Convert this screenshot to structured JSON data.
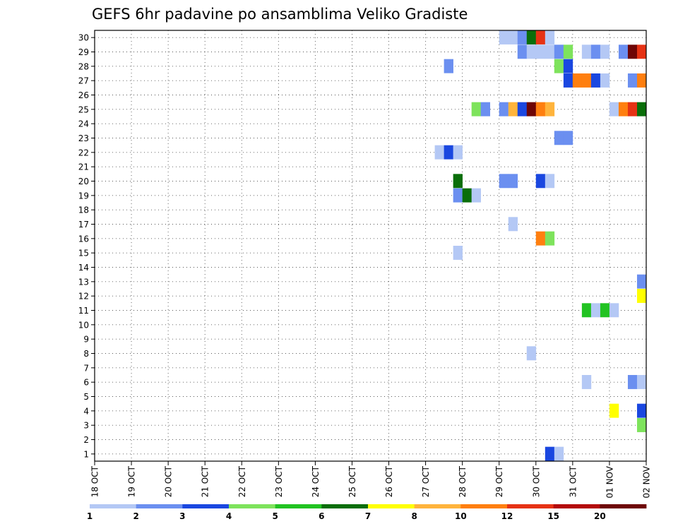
{
  "chart_data": {
    "type": "heatmap",
    "title": "GEFS 6hr padavine po ansamblima Veliko Gradiste",
    "xlabel": "",
    "ylabel": "",
    "x_tick_labels": [
      "18 OCT",
      "19 OCT",
      "20 OCT",
      "21 OCT",
      "22 OCT",
      "23 OCT",
      "24 OCT",
      "25 OCT",
      "26 OCT",
      "27 OCT",
      "28 OCT",
      "29 OCT",
      "30 OCT",
      "31 OCT",
      "01 NOV",
      "02 NOV"
    ],
    "xlim": [
      0,
      60
    ],
    "y_tick_labels": [
      "1",
      "2",
      "3",
      "4",
      "5",
      "6",
      "7",
      "8",
      "9",
      "10",
      "11",
      "12",
      "13",
      "14",
      "15",
      "16",
      "17",
      "18",
      "19",
      "20",
      "21",
      "22",
      "23",
      "24",
      "25",
      "26",
      "27",
      "28",
      "29",
      "30"
    ],
    "ylim": [
      0.5,
      30.5
    ],
    "grid": true,
    "colorbar": {
      "labels": [
        "1",
        "2",
        "3",
        "4",
        "5",
        "6",
        "7",
        "8",
        "10",
        "12",
        "15",
        "20"
      ],
      "colors": [
        "#b4c8f5",
        "#6b8ff0",
        "#1a47e0",
        "#7ee35c",
        "#22c322",
        "#0a6e0a",
        "#ffff00",
        "#ffb43c",
        "#ff7f0f",
        "#e63214",
        "#b40a0a",
        "#6e0505"
      ]
    },
    "cells": [
      {
        "member": 30,
        "step": 44,
        "value": 1
      },
      {
        "member": 30,
        "step": 45,
        "value": 1
      },
      {
        "member": 30,
        "step": 46,
        "value": 2
      },
      {
        "member": 30,
        "step": 47,
        "value": 6
      },
      {
        "member": 30,
        "step": 48,
        "value": 12
      },
      {
        "member": 30,
        "step": 49,
        "value": 1
      },
      {
        "member": 29,
        "step": 46,
        "value": 2
      },
      {
        "member": 29,
        "step": 47,
        "value": 1
      },
      {
        "member": 29,
        "step": 48,
        "value": 1
      },
      {
        "member": 29,
        "step": 49,
        "value": 1
      },
      {
        "member": 29,
        "step": 50,
        "value": 2
      },
      {
        "member": 29,
        "step": 51,
        "value": 4
      },
      {
        "member": 29,
        "step": 53,
        "value": 1
      },
      {
        "member": 29,
        "step": 54,
        "value": 2
      },
      {
        "member": 29,
        "step": 55,
        "value": 1
      },
      {
        "member": 29,
        "step": 57,
        "value": 2
      },
      {
        "member": 29,
        "step": 58,
        "value": 20
      },
      {
        "member": 29,
        "step": 59,
        "value": 12
      },
      {
        "member": 28,
        "step": 38,
        "value": 2
      },
      {
        "member": 28,
        "step": 50,
        "value": 4
      },
      {
        "member": 28,
        "step": 51,
        "value": 3
      },
      {
        "member": 27,
        "step": 51,
        "value": 3
      },
      {
        "member": 27,
        "step": 52,
        "value": 10
      },
      {
        "member": 27,
        "step": 53,
        "value": 10
      },
      {
        "member": 27,
        "step": 54,
        "value": 3
      },
      {
        "member": 27,
        "step": 55,
        "value": 1
      },
      {
        "member": 27,
        "step": 58,
        "value": 2
      },
      {
        "member": 27,
        "step": 59,
        "value": 10
      },
      {
        "member": 25,
        "step": 41,
        "value": 4
      },
      {
        "member": 25,
        "step": 42,
        "value": 2
      },
      {
        "member": 25,
        "step": 44,
        "value": 2
      },
      {
        "member": 25,
        "step": 45,
        "value": 8
      },
      {
        "member": 25,
        "step": 46,
        "value": 3
      },
      {
        "member": 25,
        "step": 47,
        "value": 20
      },
      {
        "member": 25,
        "step": 48,
        "value": 10
      },
      {
        "member": 25,
        "step": 49,
        "value": 8
      },
      {
        "member": 25,
        "step": 56,
        "value": 1
      },
      {
        "member": 25,
        "step": 57,
        "value": 10
      },
      {
        "member": 25,
        "step": 58,
        "value": 12
      },
      {
        "member": 25,
        "step": 59,
        "value": 6
      },
      {
        "member": 23,
        "step": 50,
        "value": 2
      },
      {
        "member": 23,
        "step": 51,
        "value": 2
      },
      {
        "member": 22,
        "step": 37,
        "value": 1
      },
      {
        "member": 22,
        "step": 38,
        "value": 3
      },
      {
        "member": 22,
        "step": 39,
        "value": 1
      },
      {
        "member": 20,
        "step": 39,
        "value": 6
      },
      {
        "member": 20,
        "step": 44,
        "value": 2
      },
      {
        "member": 20,
        "step": 45,
        "value": 2
      },
      {
        "member": 20,
        "step": 48,
        "value": 3
      },
      {
        "member": 20,
        "step": 49,
        "value": 1
      },
      {
        "member": 19,
        "step": 39,
        "value": 2
      },
      {
        "member": 19,
        "step": 40,
        "value": 6
      },
      {
        "member": 19,
        "step": 41,
        "value": 1
      },
      {
        "member": 17,
        "step": 45,
        "value": 1
      },
      {
        "member": 16,
        "step": 48,
        "value": 10
      },
      {
        "member": 16,
        "step": 49,
        "value": 4
      },
      {
        "member": 15,
        "step": 39,
        "value": 1
      },
      {
        "member": 13,
        "step": 59,
        "value": 2
      },
      {
        "member": 12,
        "step": 59,
        "value": 7
      },
      {
        "member": 11,
        "step": 53,
        "value": 5
      },
      {
        "member": 11,
        "step": 54,
        "value": 1
      },
      {
        "member": 11,
        "step": 55,
        "value": 5
      },
      {
        "member": 11,
        "step": 56,
        "value": 1
      },
      {
        "member": 8,
        "step": 47,
        "value": 1
      },
      {
        "member": 6,
        "step": 53,
        "value": 1
      },
      {
        "member": 6,
        "step": 58,
        "value": 2
      },
      {
        "member": 6,
        "step": 59,
        "value": 1
      },
      {
        "member": 4,
        "step": 56,
        "value": 7
      },
      {
        "member": 4,
        "step": 59,
        "value": 3
      },
      {
        "member": 3,
        "step": 59,
        "value": 4
      },
      {
        "member": 1,
        "step": 49,
        "value": 3
      },
      {
        "member": 1,
        "step": 50,
        "value": 1
      }
    ]
  }
}
